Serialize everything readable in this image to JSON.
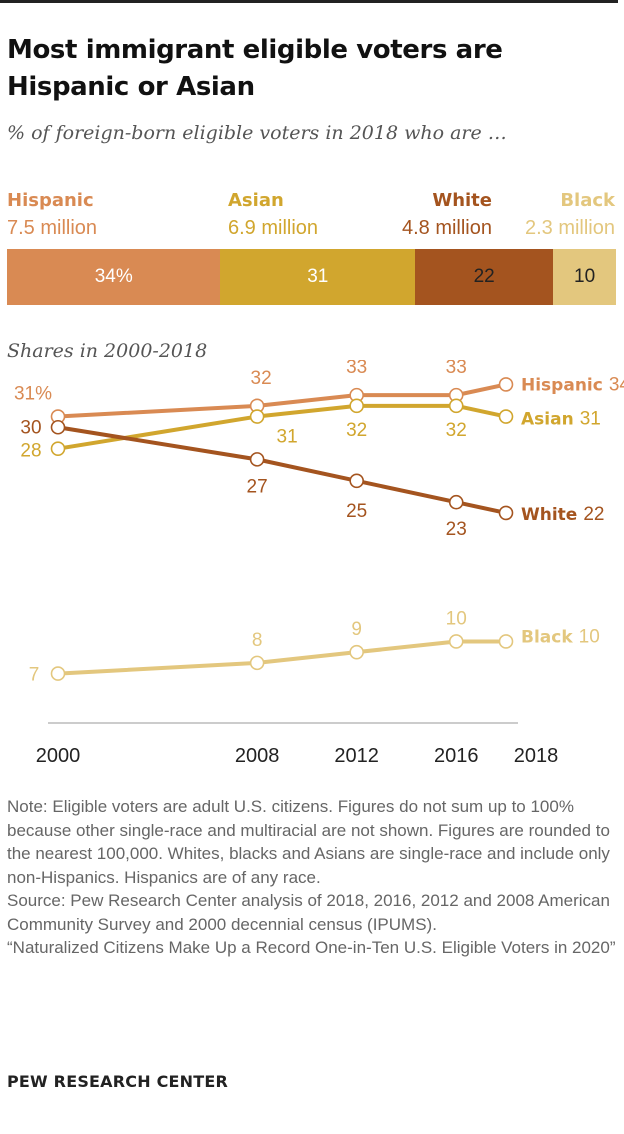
{
  "title": "Most immigrant eligible voters are Hispanic or Asian",
  "subtitle": "% of foreign-born eligible voters in 2018 who are …",
  "groups": [
    {
      "name": "Hispanic",
      "count": "7.5 million",
      "share": 34,
      "share_label": "34%",
      "color": "#D98A53",
      "text_color": "#ffffff"
    },
    {
      "name": "Asian",
      "count": "6.9 million",
      "share": 31,
      "share_label": "31",
      "color": "#D1A62E",
      "text_color": "#ffffff"
    },
    {
      "name": "White",
      "count": "4.8 million",
      "share": 22,
      "share_label": "22",
      "color": "#A4541F",
      "text_color": "#222222"
    },
    {
      "name": "Black",
      "count": "2.3 million",
      "share": 10,
      "share_label": "10",
      "color": "#E3C77E",
      "text_color": "#222222"
    }
  ],
  "section_label": "Shares in 2000-2018",
  "chart_data": {
    "type": "line",
    "title": "Shares in 2000-2018",
    "x": [
      2000,
      2008,
      2012,
      2016,
      2018
    ],
    "x_tick_labels": [
      "2000",
      "2008",
      "2012",
      "2016",
      "2018"
    ],
    "xlim": [
      2000,
      2018
    ],
    "ylim": [
      5,
      36
    ],
    "grid": false,
    "series": [
      {
        "name": "Hispanic",
        "values": [
          31,
          32,
          33,
          33,
          34
        ],
        "labels": [
          "31%",
          "32",
          "33",
          "33",
          "34"
        ],
        "color": "#D98A53"
      },
      {
        "name": "Asian",
        "values": [
          28,
          31,
          32,
          32,
          31
        ],
        "labels": [
          "28",
          "31",
          "32",
          "32",
          "31"
        ],
        "color": "#D1A62E"
      },
      {
        "name": "White",
        "values": [
          30,
          27,
          25,
          23,
          22
        ],
        "labels": [
          "30",
          "27",
          "25",
          "23",
          "22"
        ],
        "color": "#A4541F"
      },
      {
        "name": "Black",
        "values": [
          7,
          8,
          9,
          10,
          10
        ],
        "labels": [
          "7",
          "8",
          "9",
          "10",
          "10"
        ],
        "color": "#E3C77E"
      }
    ]
  },
  "notes": {
    "note": "Note: Eligible voters are adult U.S. citizens. Figures do not sum up to 100% because other single-race and multiracial are not shown. Figures are rounded to the nearest 100,000. Whites, blacks and Asians are single-race and include only non-Hispanics. Hispanics are of any race.",
    "source": "Source: Pew Research Center analysis of 2018, 2016, 2012 and 2008 American Community Survey and 2000 decennial census (IPUMS).",
    "report": "“Naturalized Citizens Make Up a Record One-in-Ten U.S. Eligible Voters in 2020”"
  },
  "brand": "PEW RESEARCH CENTER"
}
